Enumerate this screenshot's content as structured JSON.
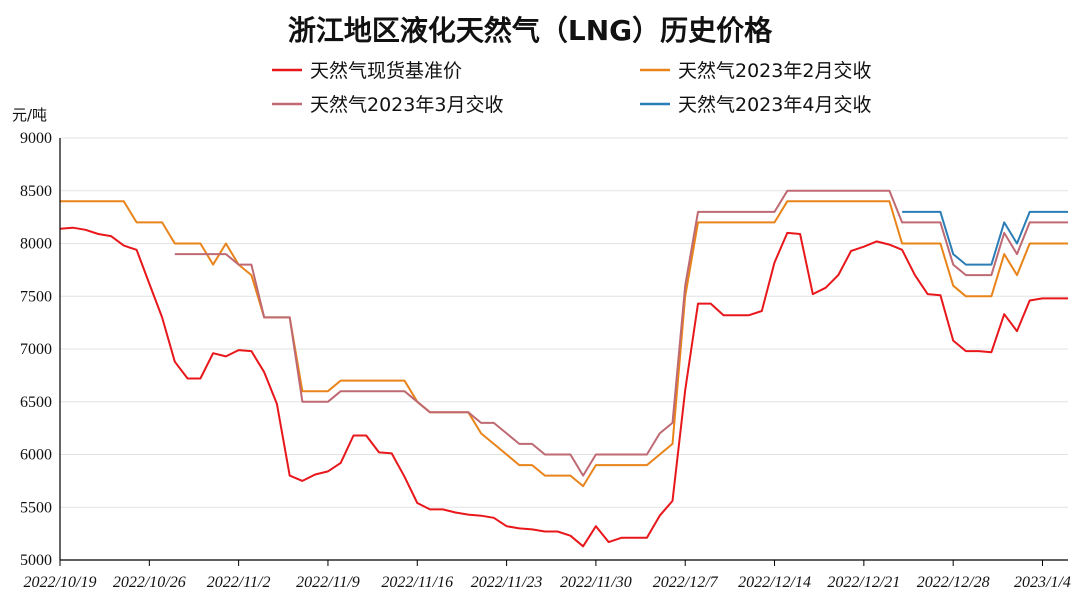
{
  "chart_data": {
    "type": "line",
    "title": "浙江地区液化天然气（LNG）历史价格",
    "ylabel": "元/吨",
    "ylim": [
      5000,
      9000
    ],
    "yticks": [
      5000,
      5500,
      6000,
      6500,
      7000,
      7500,
      8000,
      8500,
      9000
    ],
    "x_start": "2022-10-19",
    "x_end": "2023-01-06",
    "xtick_labels": [
      "2022/10/19",
      "2022/10/26",
      "2022/11/2",
      "2022/11/9",
      "2022/11/16",
      "2022/11/23",
      "2022/11/30",
      "2022/12/7",
      "2022/12/14",
      "2022/12/21",
      "2022/12/28",
      "2023/1/4"
    ],
    "legend_position": "top",
    "grid": "horizontal",
    "series": [
      {
        "name": "天然气现货基准价",
        "color": "#e8171b",
        "points": [
          [
            "2022-10-19",
            8140
          ],
          [
            "2022-10-20",
            8150
          ],
          [
            "2022-10-21",
            8130
          ],
          [
            "2022-10-22",
            8090
          ],
          [
            "2022-10-23",
            8070
          ],
          [
            "2022-10-24",
            7980
          ],
          [
            "2022-10-25",
            7940
          ],
          [
            "2022-10-26",
            7620
          ],
          [
            "2022-10-27",
            7300
          ],
          [
            "2022-10-28",
            6880
          ],
          [
            "2022-10-29",
            6720
          ],
          [
            "2022-10-30",
            6720
          ],
          [
            "2022-10-31",
            6960
          ],
          [
            "2022-11-01",
            6930
          ],
          [
            "2022-11-02",
            6990
          ],
          [
            "2022-11-03",
            6980
          ],
          [
            "2022-11-04",
            6780
          ],
          [
            "2022-11-05",
            6480
          ],
          [
            "2022-11-06",
            5800
          ],
          [
            "2022-11-07",
            5750
          ],
          [
            "2022-11-08",
            5810
          ],
          [
            "2022-11-09",
            5840
          ],
          [
            "2022-11-10",
            5920
          ],
          [
            "2022-11-11",
            6180
          ],
          [
            "2022-11-12",
            6180
          ],
          [
            "2022-11-13",
            6020
          ],
          [
            "2022-11-14",
            6010
          ],
          [
            "2022-11-15",
            5790
          ],
          [
            "2022-11-16",
            5540
          ],
          [
            "2022-11-17",
            5480
          ],
          [
            "2022-11-18",
            5480
          ],
          [
            "2022-11-19",
            5450
          ],
          [
            "2022-11-20",
            5430
          ],
          [
            "2022-11-21",
            5420
          ],
          [
            "2022-11-22",
            5400
          ],
          [
            "2022-11-23",
            5320
          ],
          [
            "2022-11-24",
            5300
          ],
          [
            "2022-11-25",
            5290
          ],
          [
            "2022-11-26",
            5270
          ],
          [
            "2022-11-27",
            5270
          ],
          [
            "2022-11-28",
            5230
          ],
          [
            "2022-11-29",
            5130
          ],
          [
            "2022-11-30",
            5320
          ],
          [
            "2022-12-01",
            5170
          ],
          [
            "2022-12-02",
            5210
          ],
          [
            "2022-12-03",
            5210
          ],
          [
            "2022-12-04",
            5210
          ],
          [
            "2022-12-05",
            5420
          ],
          [
            "2022-12-06",
            5560
          ],
          [
            "2022-12-07",
            6610
          ],
          [
            "2022-12-08",
            7430
          ],
          [
            "2022-12-09",
            7430
          ],
          [
            "2022-12-10",
            7320
          ],
          [
            "2022-12-11",
            7320
          ],
          [
            "2022-12-12",
            7320
          ],
          [
            "2022-12-13",
            7360
          ],
          [
            "2022-12-14",
            7820
          ],
          [
            "2022-12-15",
            8100
          ],
          [
            "2022-12-16",
            8090
          ],
          [
            "2022-12-17",
            7520
          ],
          [
            "2022-12-18",
            7580
          ],
          [
            "2022-12-19",
            7700
          ],
          [
            "2022-12-20",
            7930
          ],
          [
            "2022-12-21",
            7970
          ],
          [
            "2022-12-22",
            8020
          ],
          [
            "2022-12-23",
            7990
          ],
          [
            "2022-12-24",
            7940
          ],
          [
            "2022-12-25",
            7700
          ],
          [
            "2022-12-26",
            7520
          ],
          [
            "2022-12-27",
            7510
          ],
          [
            "2022-12-28",
            7080
          ],
          [
            "2022-12-29",
            6980
          ],
          [
            "2022-12-30",
            6980
          ],
          [
            "2022-12-31",
            6970
          ],
          [
            "2023-01-01",
            7330
          ],
          [
            "2023-01-02",
            7170
          ],
          [
            "2023-01-03",
            7460
          ],
          [
            "2023-01-04",
            7480
          ],
          [
            "2023-01-05",
            7480
          ],
          [
            "2023-01-06",
            7480
          ]
        ]
      },
      {
        "name": "天然气2023年2月交收",
        "color": "#e8841a",
        "points": [
          [
            "2022-10-19",
            8400
          ],
          [
            "2022-10-24",
            8400
          ],
          [
            "2022-10-25",
            8200
          ],
          [
            "2022-10-27",
            8200
          ],
          [
            "2022-10-28",
            8000
          ],
          [
            "2022-10-30",
            8000
          ],
          [
            "2022-10-31",
            7800
          ],
          [
            "2022-11-01",
            8000
          ],
          [
            "2022-11-02",
            7800
          ],
          [
            "2022-11-03",
            7700
          ],
          [
            "2022-11-04",
            7300
          ],
          [
            "2022-11-06",
            7300
          ],
          [
            "2022-11-07",
            6600
          ],
          [
            "2022-11-09",
            6600
          ],
          [
            "2022-11-10",
            6700
          ],
          [
            "2022-11-15",
            6700
          ],
          [
            "2022-11-16",
            6500
          ],
          [
            "2022-11-17",
            6400
          ],
          [
            "2022-11-20",
            6400
          ],
          [
            "2022-11-21",
            6200
          ],
          [
            "2022-11-22",
            6100
          ],
          [
            "2022-11-23",
            6000
          ],
          [
            "2022-11-24",
            5900
          ],
          [
            "2022-11-25",
            5900
          ],
          [
            "2022-11-26",
            5800
          ],
          [
            "2022-11-28",
            5800
          ],
          [
            "2022-11-29",
            5700
          ],
          [
            "2022-11-30",
            5900
          ],
          [
            "2022-12-04",
            5900
          ],
          [
            "2022-12-05",
            6000
          ],
          [
            "2022-12-06",
            6100
          ],
          [
            "2022-12-07",
            7500
          ],
          [
            "2022-12-08",
            8200
          ],
          [
            "2022-12-14",
            8200
          ],
          [
            "2022-12-15",
            8400
          ],
          [
            "2022-12-23",
            8400
          ],
          [
            "2022-12-24",
            8000
          ],
          [
            "2022-12-27",
            8000
          ],
          [
            "2022-12-28",
            7600
          ],
          [
            "2022-12-29",
            7500
          ],
          [
            "2022-12-31",
            7500
          ],
          [
            "2023-01-01",
            7900
          ],
          [
            "2023-01-02",
            7700
          ],
          [
            "2023-01-03",
            8000
          ],
          [
            "2023-01-06",
            8000
          ]
        ]
      },
      {
        "name": "天然气2023年3月交收",
        "color": "#bf6a73",
        "points": [
          [
            "2022-10-28",
            7900
          ],
          [
            "2022-11-01",
            7900
          ],
          [
            "2022-11-02",
            7800
          ],
          [
            "2022-11-03",
            7800
          ],
          [
            "2022-11-04",
            7300
          ],
          [
            "2022-11-06",
            7300
          ],
          [
            "2022-11-07",
            6500
          ],
          [
            "2022-11-09",
            6500
          ],
          [
            "2022-11-10",
            6600
          ],
          [
            "2022-11-15",
            6600
          ],
          [
            "2022-11-16",
            6500
          ],
          [
            "2022-11-17",
            6400
          ],
          [
            "2022-11-20",
            6400
          ],
          [
            "2022-11-21",
            6300
          ],
          [
            "2022-11-22",
            6300
          ],
          [
            "2022-11-23",
            6200
          ],
          [
            "2022-11-24",
            6100
          ],
          [
            "2022-11-25",
            6100
          ],
          [
            "2022-11-26",
            6000
          ],
          [
            "2022-11-28",
            6000
          ],
          [
            "2022-11-29",
            5800
          ],
          [
            "2022-11-30",
            6000
          ],
          [
            "2022-12-04",
            6000
          ],
          [
            "2022-12-05",
            6200
          ],
          [
            "2022-12-06",
            6300
          ],
          [
            "2022-12-07",
            7600
          ],
          [
            "2022-12-08",
            8300
          ],
          [
            "2022-12-14",
            8300
          ],
          [
            "2022-12-15",
            8500
          ],
          [
            "2022-12-23",
            8500
          ],
          [
            "2022-12-24",
            8200
          ],
          [
            "2022-12-27",
            8200
          ],
          [
            "2022-12-28",
            7800
          ],
          [
            "2022-12-29",
            7700
          ],
          [
            "2022-12-31",
            7700
          ],
          [
            "2023-01-01",
            8100
          ],
          [
            "2023-01-02",
            7900
          ],
          [
            "2023-01-03",
            8200
          ],
          [
            "2023-01-06",
            8200
          ]
        ]
      },
      {
        "name": "天然气2023年4月交收",
        "color": "#2b7db5",
        "points": [
          [
            "2022-12-24",
            8300
          ],
          [
            "2022-12-27",
            8300
          ],
          [
            "2022-12-28",
            7900
          ],
          [
            "2022-12-29",
            7800
          ],
          [
            "2022-12-31",
            7800
          ],
          [
            "2023-01-01",
            8200
          ],
          [
            "2023-01-02",
            8000
          ],
          [
            "2023-01-03",
            8300
          ],
          [
            "2023-01-06",
            8300
          ]
        ]
      }
    ]
  }
}
